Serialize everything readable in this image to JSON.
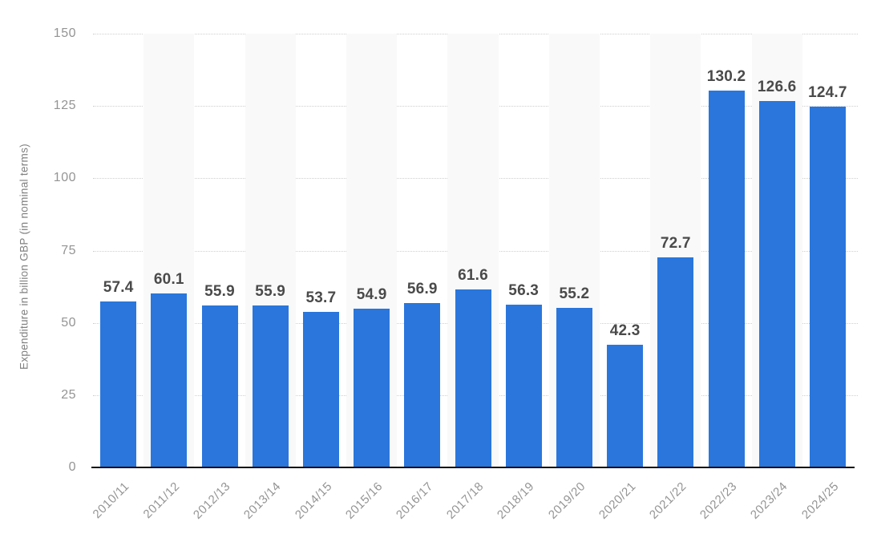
{
  "chart_data": {
    "type": "bar",
    "title": "",
    "xlabel": "",
    "ylabel": "Expenditure in billion GBP (in nominal terms)",
    "categories": [
      "2010/11",
      "2011/12",
      "2012/13",
      "2013/14",
      "2014/15",
      "2015/16",
      "2016/17",
      "2017/18",
      "2018/19",
      "2019/20",
      "2020/21",
      "2021/22",
      "2022/23",
      "2023/24",
      "2024/25"
    ],
    "values": [
      57.4,
      60.1,
      55.9,
      55.9,
      53.7,
      54.9,
      56.9,
      61.6,
      56.3,
      55.2,
      42.3,
      72.7,
      130.2,
      126.6,
      124.7
    ],
    "value_labels": [
      "57.4",
      "60.1",
      "55.9",
      "55.9",
      "53.7",
      "54.9",
      "56.9",
      "61.6",
      "56.3",
      "55.2",
      "42.3",
      "72.7",
      "130.2",
      "126.6",
      "124.7"
    ],
    "ylim": [
      0,
      150
    ],
    "yticks": [
      0,
      25,
      50,
      75,
      100,
      125,
      150
    ],
    "grid": "horizontal-dotted",
    "legend_position": "none",
    "plot_bands": "alternating-vertical",
    "colors": {
      "bar": "#2a76dc",
      "band": "#f9f9f9",
      "gridline": "#cfcfcf",
      "axis_line": "#111111",
      "tick_label": "#949494",
      "axis_title": "#808080",
      "value_label": "#4a4a4a",
      "background": "#ffffff"
    }
  }
}
